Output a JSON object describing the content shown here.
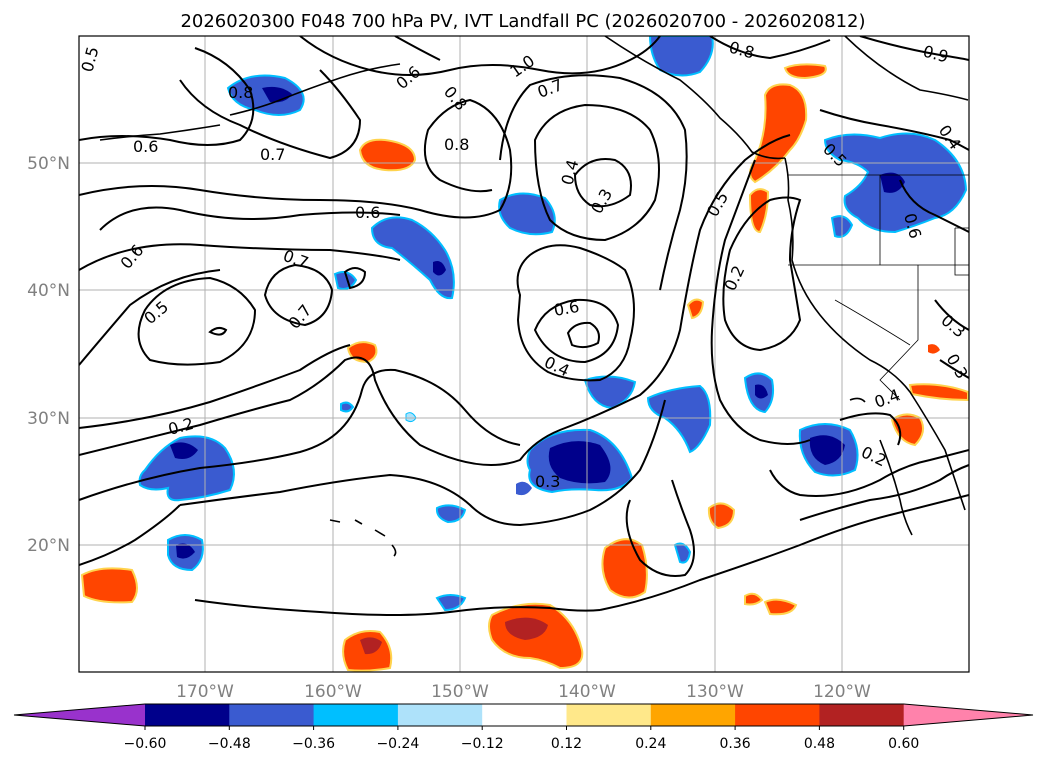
{
  "title": "2026020300 F048 700 hPa PV, IVT Landfall PC (2026020700 - 2026020812)",
  "axes": {
    "lat_labels": [
      "50°N",
      "40°N",
      "30°N",
      "20°N"
    ],
    "lon_labels": [
      "170°W",
      "160°W",
      "150°W",
      "140°W",
      "130°W",
      "120°W"
    ]
  },
  "contour_labels": [
    "0.5",
    "0.8",
    "0.6",
    "0.7",
    "0.6",
    "0.8",
    "1.0",
    "0.7",
    "0.8",
    "0.8",
    "0.9",
    "0.6",
    "0.4",
    "0.3",
    "0.5",
    "0.2",
    "0.5",
    "0.4",
    "0.6",
    "0.6",
    "0.5",
    "0.7",
    "0.7",
    "0.6",
    "0.4",
    "0.2",
    "0.3",
    "0.3",
    "0.3",
    "0.4",
    "0.2"
  ],
  "colorbar": {
    "ticks": [
      "−0.60",
      "−0.48",
      "−0.36",
      "−0.24",
      "−0.12",
      "0.12",
      "0.24",
      "0.36",
      "0.48",
      "0.60"
    ],
    "colors": [
      "#9932cc",
      "#00008b",
      "#3a5bd0",
      "#00bfff",
      "#aee2fa",
      "#ffffff",
      "#ffe88a",
      "#ffa500",
      "#ff4500",
      "#b22222",
      "#ff82ab"
    ]
  }
}
